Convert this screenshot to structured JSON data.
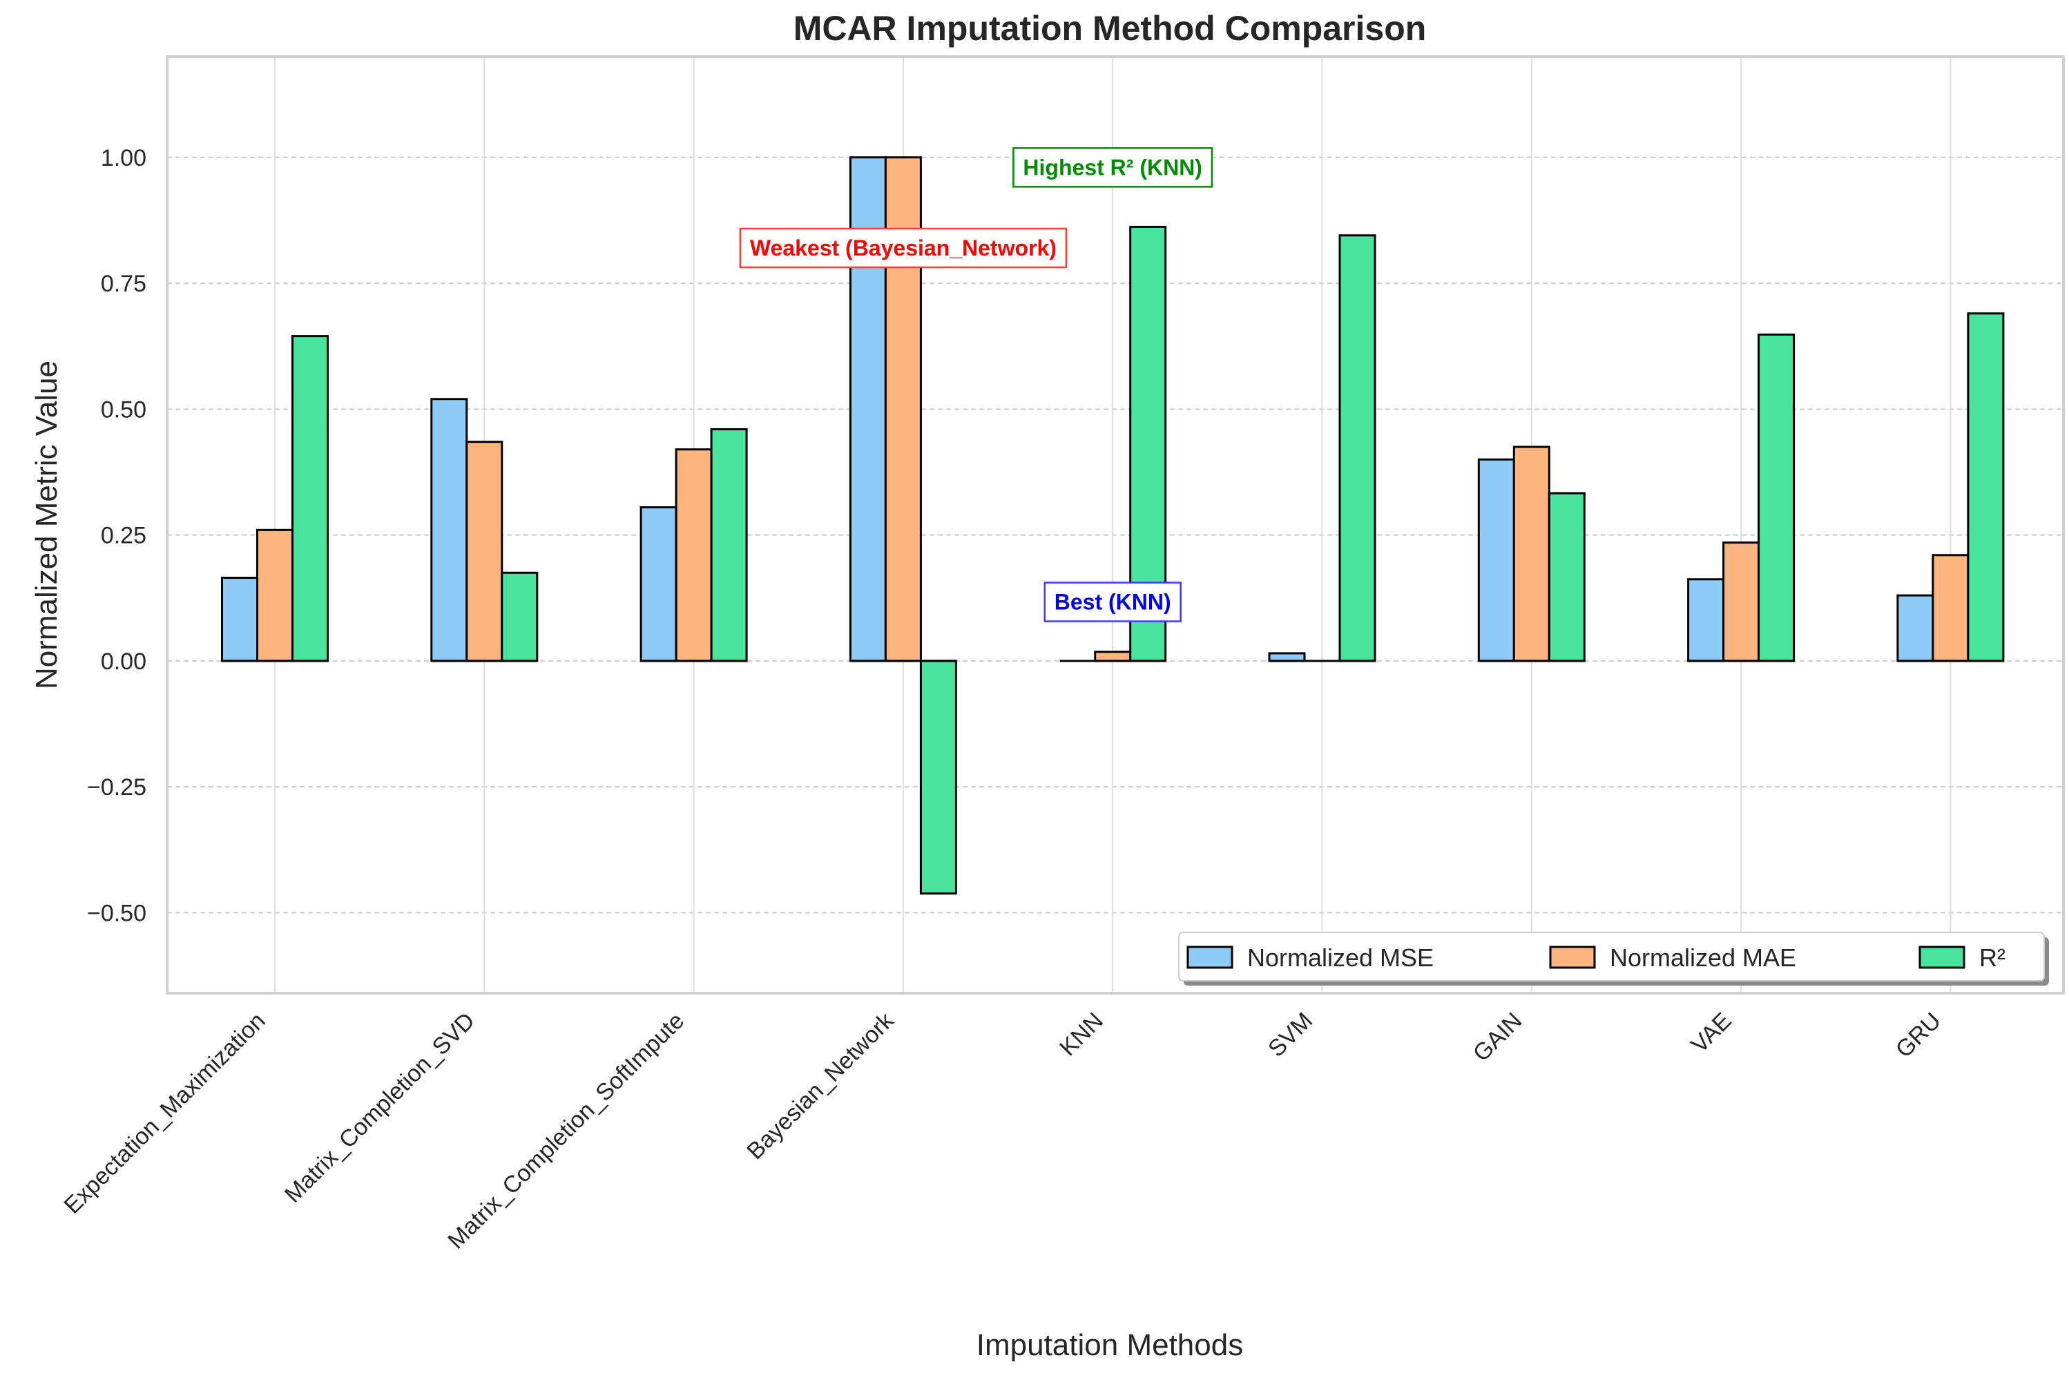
{
  "chart_data": {
    "type": "bar",
    "title": "MCAR Imputation Method Comparison",
    "xlabel": "Imputation Methods",
    "ylabel": "Normalized Metric Value",
    "ylim": [
      -0.66,
      1.2
    ],
    "yticks": [
      -0.5,
      -0.25,
      0.0,
      0.25,
      0.5,
      0.75,
      1.0
    ],
    "ytick_labels": [
      "−0.50",
      "−0.25",
      "0.00",
      "0.25",
      "0.50",
      "0.75",
      "1.00"
    ],
    "grid": true,
    "legend_position": "bottom-right",
    "categories": [
      "Expectation_Maximization",
      "Matrix_Completion_SVD",
      "Matrix_Completion_SoftImpute",
      "Bayesian_Network",
      "KNN",
      "SVM",
      "GAIN",
      "VAE",
      "GRU"
    ],
    "series": [
      {
        "name": "Normalized MSE",
        "color": "#8ecbf7",
        "values": [
          0.165,
          0.52,
          0.305,
          1.0,
          0.0,
          0.015,
          0.4,
          0.162,
          0.13
        ]
      },
      {
        "name": "Normalized MAE",
        "color": "#fdb47f",
        "values": [
          0.26,
          0.435,
          0.42,
          1.0,
          0.018,
          0.0,
          0.425,
          0.235,
          0.21
        ]
      },
      {
        "name": "R²",
        "color": "#48e49b",
        "values": [
          0.645,
          0.175,
          0.46,
          -0.462,
          0.862,
          0.845,
          0.333,
          0.648,
          0.69
        ]
      }
    ],
    "annotations": [
      {
        "text": "Highest R² (KNN)",
        "color": "#008a00",
        "border": "#008a00",
        "category": "KNN",
        "y": 0.98
      },
      {
        "text": "Weakest (Bayesian_Network)",
        "color": "#ff0000",
        "border": "#ff3b3b",
        "category": "Bayesian_Network",
        "y": 0.82
      },
      {
        "text": "Best (KNN)",
        "color": "#0000e6",
        "border": "#3b3bff",
        "category": "KNN",
        "y": 0.117
      }
    ]
  }
}
